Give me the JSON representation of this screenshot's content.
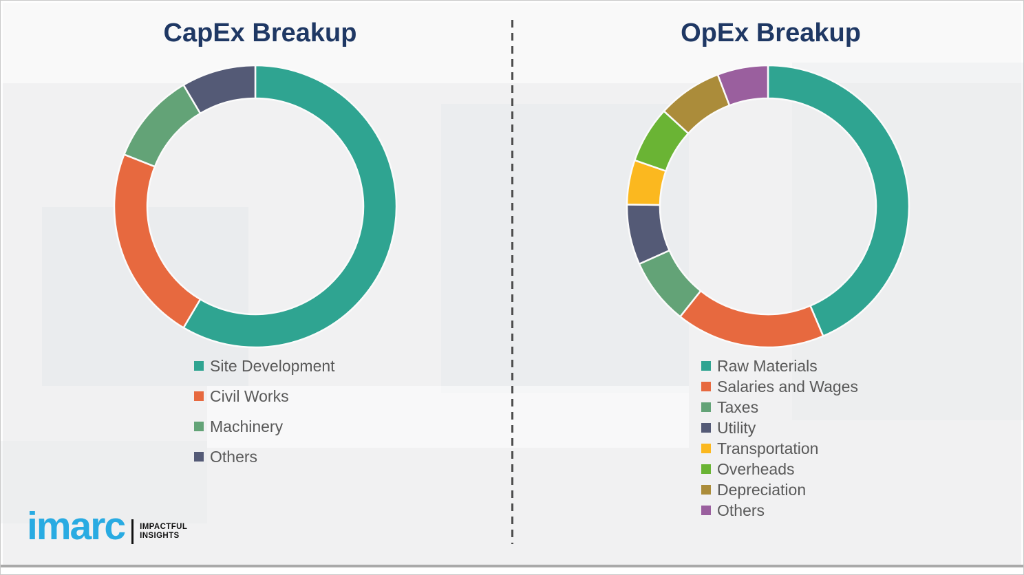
{
  "theme": {
    "background": "#f1f1f2",
    "title_color": "#1f3864",
    "legend_text_color": "#595959",
    "divider_color": "#4d4d4d",
    "bottom_rule_color": "#a9a9a9",
    "segment_gap_color": "#fbfbfb"
  },
  "logo": {
    "brand": "imarc",
    "tagline_line1": "IMPACTFUL",
    "tagline_line2": "INSIGHTS",
    "brand_color": "#29abe2"
  },
  "chart_data": [
    {
      "type": "pie",
      "variant": "donut",
      "title": "CapEx Breakup",
      "legend_position": "bottom-left",
      "start_angle_deg": 0,
      "clockwise": true,
      "categories": [
        "Site Development",
        "Civil Works",
        "Machinery",
        "Others"
      ],
      "values": [
        58.5,
        22.5,
        10.5,
        8.5
      ],
      "unit": "percent",
      "colors": [
        "#2fa491",
        "#e7693f",
        "#63a377",
        "#545a76"
      ]
    },
    {
      "type": "pie",
      "variant": "donut",
      "title": "OpEx Breakup",
      "legend_position": "bottom-left",
      "start_angle_deg": 0,
      "clockwise": true,
      "categories": [
        "Raw Materials",
        "Salaries and Wages",
        "Taxes",
        "Utility",
        "Transportation",
        "Overheads",
        "Depreciation",
        "Others"
      ],
      "values": [
        43.6,
        17.1,
        7.6,
        6.9,
        5.1,
        6.5,
        7.4,
        5.8
      ],
      "unit": "percent",
      "colors": [
        "#2fa491",
        "#e7693f",
        "#63a377",
        "#545a76",
        "#fbb81f",
        "#6ab434",
        "#ab8c3a",
        "#9a5f9e"
      ]
    }
  ]
}
